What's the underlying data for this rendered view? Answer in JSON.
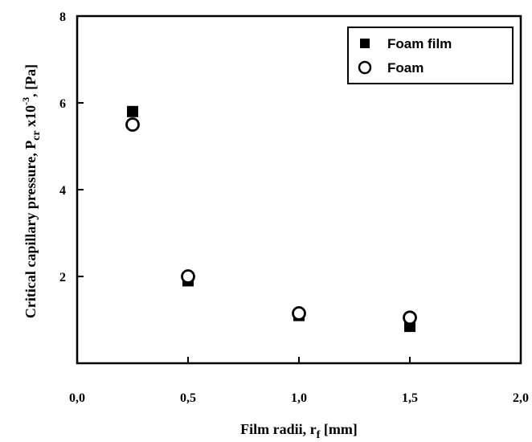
{
  "chart_data": {
    "type": "scatter",
    "title": "",
    "xlabel": {
      "main": "Film radii, r",
      "sub": "f",
      "rest": " [mm]"
    },
    "ylabel": {
      "main": "Critical capillary pressure, P",
      "sub": "cr",
      "mid": " x10",
      "sup": "-3",
      "rest": ", [Pa]"
    },
    "xlim": [
      0,
      2
    ],
    "ylim": [
      0,
      8
    ],
    "xticks": [
      "0,0",
      "0,5",
      "1,0",
      "1,5",
      "2,0"
    ],
    "yticks": [
      "2",
      "4",
      "6",
      "8"
    ],
    "legend_position": "top-right",
    "grid": false,
    "series": [
      {
        "name": "Foam film",
        "marker": "filled-square",
        "color": "#000000",
        "x": [
          0.25,
          0.5,
          1.0,
          1.5
        ],
        "y": [
          5.8,
          1.9,
          1.1,
          0.85
        ]
      },
      {
        "name": "Foam",
        "marker": "open-circle",
        "color": "#000000",
        "x": [
          0.25,
          0.5,
          1.0,
          1.5
        ],
        "y": [
          5.5,
          2.0,
          1.15,
          1.05
        ]
      }
    ]
  }
}
